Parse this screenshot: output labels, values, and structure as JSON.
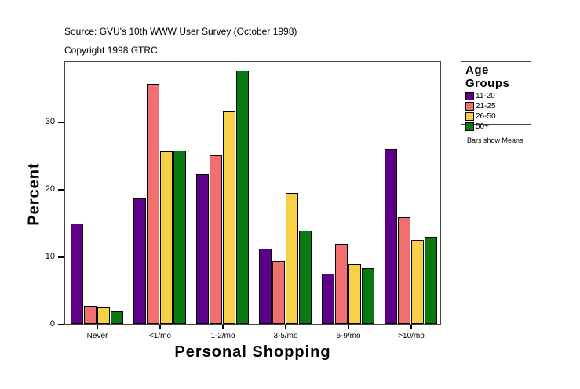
{
  "header": {
    "source": "Source: GVU's 10th WWW User Survey (October 1998)",
    "copyright": "Copyright 1998 GTRC"
  },
  "legend": {
    "title": "Age Groups",
    "items": [
      {
        "label": "11-20",
        "color": "#5F0089"
      },
      {
        "label": "21-25",
        "color": "#F07070"
      },
      {
        "label": "26-50",
        "color": "#F8D048"
      },
      {
        "label": "50+",
        "color": "#0A7A10"
      }
    ]
  },
  "note": "Bars show Means",
  "chart_data": {
    "type": "bar",
    "title": "",
    "xlabel": "Personal Shopping",
    "ylabel": "Percent",
    "categories": [
      "Never",
      "<1/mo",
      "1-2/mo",
      "3-5/mo",
      "6-9/mo",
      ">10/mo"
    ],
    "series": [
      {
        "name": "11-20",
        "color": "#5F0089",
        "values": [
          14.9,
          18.6,
          22.2,
          11.2,
          7.4,
          25.9
        ]
      },
      {
        "name": "21-25",
        "color": "#F07070",
        "values": [
          2.7,
          35.6,
          25.0,
          9.3,
          11.9,
          15.8
        ]
      },
      {
        "name": "26-50",
        "color": "#F8D048",
        "values": [
          2.4,
          25.6,
          31.5,
          19.4,
          8.8,
          12.4
        ]
      },
      {
        "name": "50+",
        "color": "#0A7A10",
        "values": [
          1.9,
          25.7,
          37.6,
          13.8,
          8.3,
          12.9
        ]
      }
    ],
    "yticks": [
      0,
      10,
      20,
      30
    ],
    "ylim": [
      0,
      39
    ],
    "grid": false,
    "legend_position": "right"
  }
}
